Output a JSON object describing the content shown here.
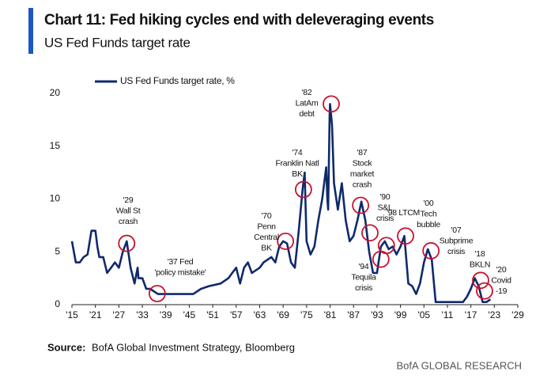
{
  "chart_data": {
    "type": "line",
    "title": "Chart 11: Fed hiking cycles end with deleveraging events",
    "subtitle": "US Fed Funds target rate",
    "x": [
      1915,
      1916,
      1917,
      1918,
      1919,
      1920,
      1921,
      1921.5,
      1922,
      1923,
      1924,
      1925,
      1926,
      1927,
      1928,
      1929,
      1930,
      1931,
      1931.8,
      1932,
      1933,
      1934,
      1935,
      1937,
      1938,
      1940,
      1942,
      1946,
      1948,
      1950,
      1953,
      1955,
      1956,
      1957,
      1958,
      1959,
      1960,
      1961,
      1963,
      1964,
      1966,
      1967,
      1968,
      1969,
      1970,
      1971,
      1972,
      1973,
      1974,
      1974.5,
      1975,
      1976,
      1977,
      1978,
      1979,
      1980,
      1980.3,
      1980.5,
      1980.9,
      1981,
      1981.5,
      1982,
      1983,
      1984,
      1985,
      1986,
      1987,
      1988,
      1989,
      1990,
      1991,
      1992,
      1993,
      1994,
      1995,
      1996,
      1997,
      1998,
      1999,
      2000,
      2001,
      2002,
      2003,
      2004,
      2005,
      2006,
      2007,
      2008,
      2015,
      2016,
      2017,
      2018,
      2019,
      2020,
      2021,
      2022
    ],
    "series": [
      {
        "name": "US Fed Funds target rate, %",
        "color": "#0f2a6b",
        "values": [
          6,
          4,
          4,
          4.5,
          4.75,
          7,
          7,
          5.5,
          4.5,
          4.5,
          3,
          3.5,
          4,
          3.5,
          5,
          6,
          3.5,
          2,
          3.5,
          2.5,
          2.5,
          1.5,
          1.5,
          1,
          1,
          1,
          1,
          1,
          1.5,
          1.75,
          2,
          2.5,
          3,
          3.5,
          2,
          3.5,
          4,
          3,
          3.5,
          4,
          4.5,
          4,
          5.5,
          6,
          5.8,
          4,
          3.5,
          7,
          11,
          12.5,
          6,
          4.75,
          5.5,
          8,
          10,
          13,
          10,
          9,
          18,
          19,
          17,
          11.5,
          9,
          11.5,
          8,
          6,
          6.5,
          8,
          9.75,
          8,
          5,
          3,
          3,
          5.5,
          6,
          5.25,
          5.5,
          4.75,
          5.5,
          6.5,
          2,
          1.75,
          1,
          2,
          4,
          5.25,
          4.25,
          0.25,
          0.25,
          0.75,
          1.5,
          2.5,
          1.75,
          0.25,
          0.25,
          0.5
        ]
      }
    ],
    "xlim": [
      1915,
      2029
    ],
    "xticks": [
      {
        "value": 1915,
        "label": "'15"
      },
      {
        "value": 1921,
        "label": "'21"
      },
      {
        "value": 1927,
        "label": "'27"
      },
      {
        "value": 1933,
        "label": "'33"
      },
      {
        "value": 1939,
        "label": "'39"
      },
      {
        "value": 1945,
        "label": "'45"
      },
      {
        "value": 1951,
        "label": "'51"
      },
      {
        "value": 1957,
        "label": "'57"
      },
      {
        "value": 1963,
        "label": "'63"
      },
      {
        "value": 1969,
        "label": "'69"
      },
      {
        "value": 1975,
        "label": "'75"
      },
      {
        "value": 1981,
        "label": "'81"
      },
      {
        "value": 1987,
        "label": "'87"
      },
      {
        "value": 1993,
        "label": "'93"
      },
      {
        "value": 1999,
        "label": "'99"
      },
      {
        "value": 2005,
        "label": "'05"
      },
      {
        "value": 2011,
        "label": "'11"
      },
      {
        "value": 2017,
        "label": "'17"
      },
      {
        "value": 2023,
        "label": "'23"
      },
      {
        "value": 2029,
        "label": "'29"
      }
    ],
    "ylim": [
      0,
      20
    ],
    "yticks": [
      0,
      5,
      10,
      15,
      20
    ],
    "annotations": [
      {
        "lines": [
          "'29",
          "Wall St",
          "crash"
        ]
      },
      {
        "lines": [
          "'37 Fed",
          "'policy mistake'"
        ]
      },
      {
        "lines": [
          "'70",
          "Penn",
          "Central",
          "BK"
        ]
      },
      {
        "lines": [
          "'74",
          "Franklin Natl",
          "BK"
        ]
      },
      {
        "lines": [
          "'82",
          "LatAm",
          "debt"
        ]
      },
      {
        "lines": [
          "'87",
          "Stock",
          "market",
          "crash"
        ]
      },
      {
        "lines": [
          "'90",
          "S&L",
          "crisis"
        ]
      },
      {
        "lines": [
          "'98 LTCM"
        ]
      },
      {
        "lines": [
          "'94",
          "Tequila",
          "crisis"
        ]
      },
      {
        "lines": [
          "'00",
          "Tech",
          "bubble"
        ]
      },
      {
        "lines": [
          "'07",
          "Subprime",
          "crisis"
        ]
      },
      {
        "lines": [
          "'18",
          "BKLN"
        ]
      },
      {
        "lines": [
          "'20",
          "Covid",
          "-19"
        ]
      }
    ],
    "circles": [
      {
        "x": 1929,
        "y": 5.8
      },
      {
        "x": 1936.8,
        "y": 1.05
      },
      {
        "x": 1969.6,
        "y": 6
      },
      {
        "x": 1974.2,
        "y": 10.9
      },
      {
        "x": 1981.3,
        "y": 19
      },
      {
        "x": 1988.8,
        "y": 9.4
      },
      {
        "x": 1991.2,
        "y": 6.8
      },
      {
        "x": 1994,
        "y": 4.3
      },
      {
        "x": 1995.4,
        "y": 5.6
      },
      {
        "x": 2000.3,
        "y": 6.5
      },
      {
        "x": 2006.8,
        "y": 5.1
      },
      {
        "x": 2019.5,
        "y": 2.3
      },
      {
        "x": 2020.5,
        "y": 1.3
      }
    ],
    "circle_color": "#c8102e",
    "source": {
      "label": "Source:",
      "text": "BofA Global Investment Strategy, Bloomberg"
    },
    "footer": "BofA GLOBAL RESEARCH"
  }
}
